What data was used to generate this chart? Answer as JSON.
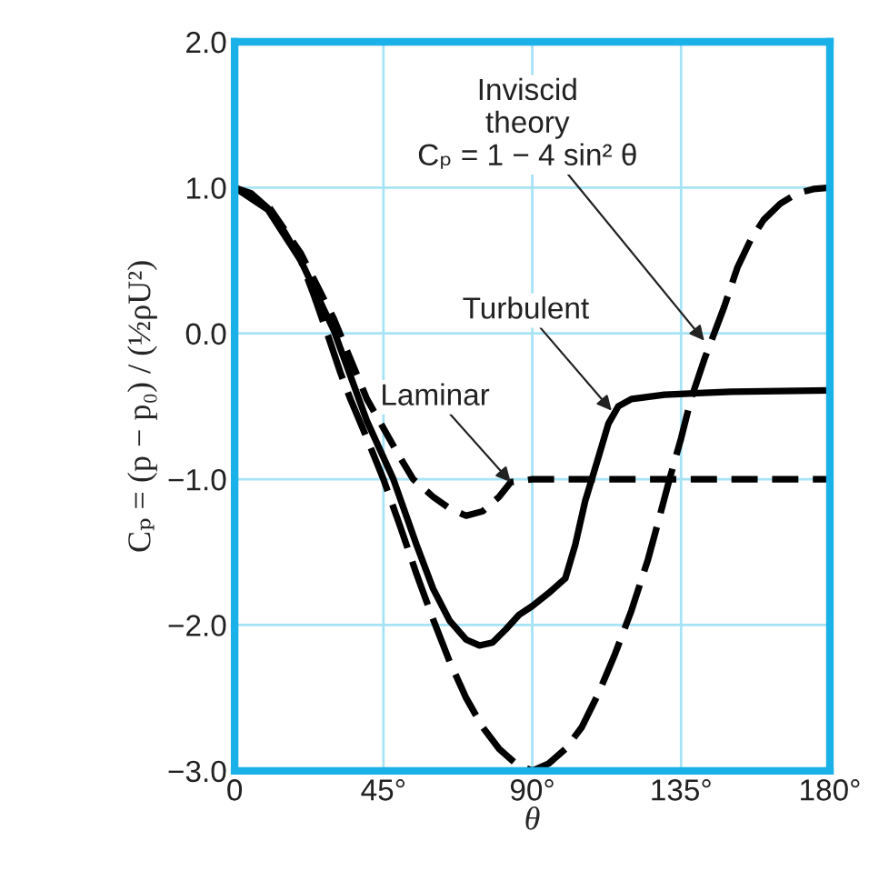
{
  "chart_data": {
    "type": "line",
    "xlabel": "θ",
    "ylabel": "Cₚ = (p − p₀) / (½ρU²)",
    "xlim": [
      0,
      180
    ],
    "ylim": [
      -3.0,
      2.0
    ],
    "xticks": [
      0,
      {
        "value": 45,
        "label": "45°"
      },
      {
        "value": 90,
        "label": "90°"
      },
      {
        "value": 135,
        "label": "135°"
      },
      {
        "value": 180,
        "label": "180°"
      }
    ],
    "yticks": [
      {
        "value": -3.0,
        "label": "−3.0"
      },
      {
        "value": -2.0,
        "label": "−2.0"
      },
      {
        "value": -1.0,
        "label": "−1.0"
      },
      {
        "value": 0.0,
        "label": "0.0"
      },
      {
        "value": 1.0,
        "label": "1.0"
      },
      {
        "value": 2.0,
        "label": "2.0"
      }
    ],
    "grid": true,
    "legend": false,
    "marker": "none",
    "series": [
      {
        "color": "#000000",
        "line_style": "longdash",
        "x": [
          0,
          5,
          10,
          15,
          20,
          24,
          28,
          32,
          35,
          40,
          45,
          50,
          55,
          60,
          65,
          70,
          75,
          80,
          85,
          90,
          95,
          100,
          105,
          110,
          115,
          120,
          125,
          128,
          131.5,
          135,
          138,
          142,
          145,
          148,
          152,
          156,
          160,
          165,
          170,
          175,
          180
        ],
        "values": [
          1.0,
          0.96,
          0.86,
          0.7,
          0.5,
          0.26,
          0.0,
          -0.27,
          -0.45,
          -0.72,
          -1.0,
          -1.32,
          -1.65,
          -1.96,
          -2.25,
          -2.5,
          -2.7,
          -2.85,
          -2.95,
          -3.0,
          -2.95,
          -2.85,
          -2.7,
          -2.47,
          -2.2,
          -1.9,
          -1.55,
          -1.3,
          -1.0,
          -0.72,
          -0.45,
          -0.18,
          0.0,
          0.18,
          0.45,
          0.64,
          0.78,
          0.89,
          0.96,
          0.99,
          1.0
        ]
      },
      {
        "color": "#000000",
        "line_style": "solid",
        "x": [
          0,
          10,
          20,
          30,
          40,
          48,
          55,
          60,
          65,
          70,
          74,
          78,
          82,
          86,
          90,
          95,
          100,
          103,
          106,
          110,
          113,
          116,
          120,
          130,
          150,
          180
        ],
        "values": [
          1.0,
          0.85,
          0.5,
          0.02,
          -0.6,
          -1.0,
          -1.45,
          -1.75,
          -1.97,
          -2.1,
          -2.14,
          -2.12,
          -2.03,
          -1.93,
          -1.87,
          -1.78,
          -1.68,
          -1.45,
          -1.15,
          -0.85,
          -0.62,
          -0.5,
          -0.45,
          -0.42,
          -0.4,
          -0.39
        ]
      },
      {
        "color": "#000000",
        "line_style": "dashed",
        "x": [
          0,
          10,
          20,
          30,
          40,
          50,
          54,
          60,
          65,
          70,
          75,
          80,
          83.5,
          90,
          180
        ],
        "values": [
          1.0,
          0.88,
          0.55,
          0.1,
          -0.45,
          -0.85,
          -1.0,
          -1.12,
          -1.2,
          -1.25,
          -1.22,
          -1.12,
          -1.02,
          -1.0,
          -1.0
        ]
      }
    ],
    "annotations": [
      {
        "text": "Inviscid\ntheory\nCₚ = 1 − 4 sin² θ",
        "x": 142,
        "y": -0.05
      },
      {
        "text": "Turbulent",
        "x": 114,
        "y": -0.53
      },
      {
        "text": "Laminar",
        "x": 83.5,
        "y": -1.02
      }
    ]
  }
}
